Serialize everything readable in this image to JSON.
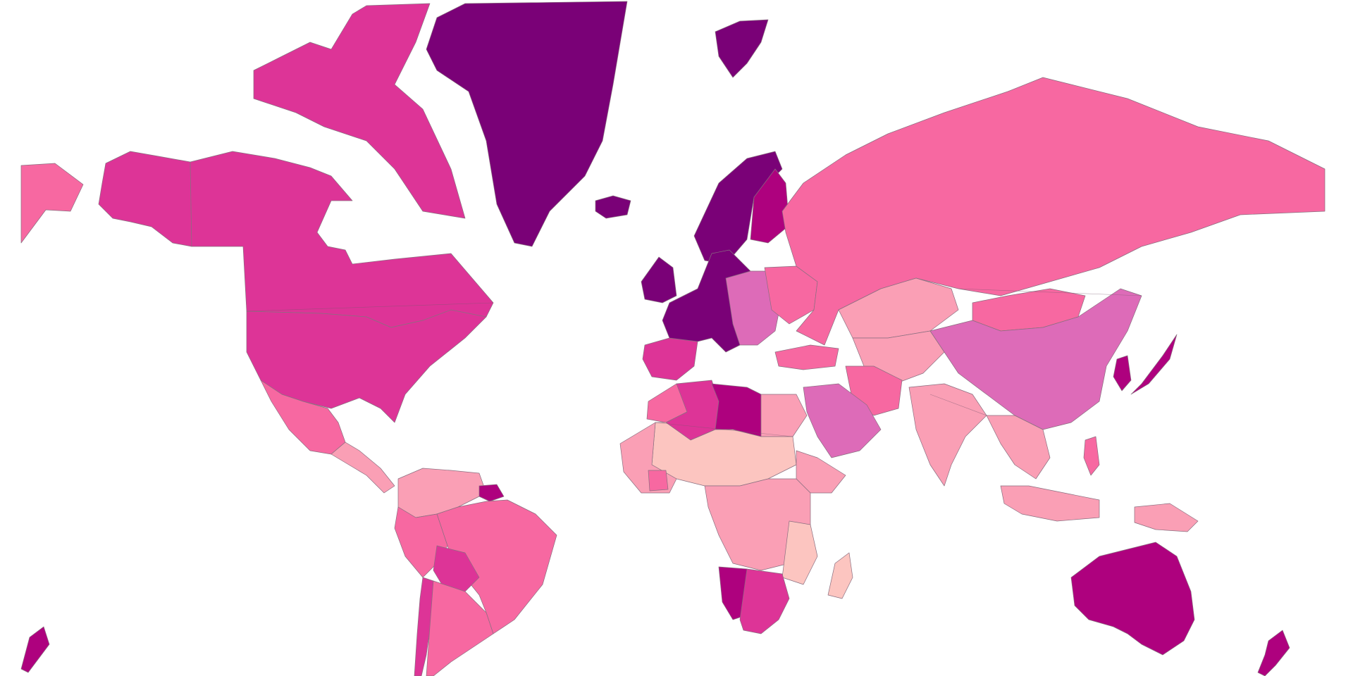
{
  "map": {
    "type": "choropleth",
    "projection": "mercator",
    "background": "#ffffff",
    "palette": [
      "#fcc5c0",
      "#fa9fb5",
      "#f768a1",
      "#dd6bb8",
      "#dd3497",
      "#ae017e",
      "#7a0177"
    ],
    "regions": [
      {
        "name": "greenland",
        "color": "#7a0177"
      },
      {
        "name": "svalbard",
        "color": "#7a0177"
      },
      {
        "name": "canada-arctic-islands",
        "color": "#dd3497"
      },
      {
        "name": "canada",
        "color": "#dd3497"
      },
      {
        "name": "alaska",
        "color": "#dd3497"
      },
      {
        "name": "chukotka",
        "color": "#f768a1"
      },
      {
        "name": "usa",
        "color": "#dd3497"
      },
      {
        "name": "mexico",
        "color": "#f768a1"
      },
      {
        "name": "central-america",
        "color": "#fa9fb5"
      },
      {
        "name": "colombia-venezuela",
        "color": "#fa9fb5"
      },
      {
        "name": "guianas",
        "color": "#ae017e"
      },
      {
        "name": "brazil",
        "color": "#f768a1"
      },
      {
        "name": "peru",
        "color": "#f768a1"
      },
      {
        "name": "bolivia",
        "color": "#dd3497"
      },
      {
        "name": "chile",
        "color": "#dd3497"
      },
      {
        "name": "argentina",
        "color": "#f768a1"
      },
      {
        "name": "iceland",
        "color": "#7a0177"
      },
      {
        "name": "united-kingdom",
        "color": "#7a0177"
      },
      {
        "name": "scandinavia",
        "color": "#7a0177"
      },
      {
        "name": "finland",
        "color": "#ae017e"
      },
      {
        "name": "western-europe",
        "color": "#7a0177"
      },
      {
        "name": "iberia",
        "color": "#dd3497"
      },
      {
        "name": "eastern-europe",
        "color": "#dd6bb8"
      },
      {
        "name": "ukraine",
        "color": "#f768a1"
      },
      {
        "name": "russia",
        "color": "#f768a1"
      },
      {
        "name": "kazakhstan",
        "color": "#fa9fb5"
      },
      {
        "name": "central-asia",
        "color": "#fa9fb5"
      },
      {
        "name": "mongolia",
        "color": "#f768a1"
      },
      {
        "name": "china",
        "color": "#dd6bb8"
      },
      {
        "name": "korea",
        "color": "#ae017e"
      },
      {
        "name": "japan",
        "color": "#ae017e"
      },
      {
        "name": "turkey",
        "color": "#f768a1"
      },
      {
        "name": "iran",
        "color": "#f768a1"
      },
      {
        "name": "saudi-arabia",
        "color": "#dd6bb8"
      },
      {
        "name": "india",
        "color": "#fa9fb5"
      },
      {
        "name": "southeast-asia",
        "color": "#fa9fb5"
      },
      {
        "name": "indonesia",
        "color": "#fa9fb5"
      },
      {
        "name": "philippines",
        "color": "#f768a1"
      },
      {
        "name": "new-guinea",
        "color": "#fa9fb5"
      },
      {
        "name": "australia",
        "color": "#ae017e"
      },
      {
        "name": "new-zealand",
        "color": "#ae017e"
      },
      {
        "name": "morocco",
        "color": "#f768a1"
      },
      {
        "name": "algeria",
        "color": "#dd3497"
      },
      {
        "name": "libya",
        "color": "#ae017e"
      },
      {
        "name": "egypt",
        "color": "#fa9fb5"
      },
      {
        "name": "sahel",
        "color": "#fcc5c0"
      },
      {
        "name": "west-africa",
        "color": "#fa9fb5"
      },
      {
        "name": "ghana",
        "color": "#f768a1"
      },
      {
        "name": "horn-of-africa",
        "color": "#fa9fb5"
      },
      {
        "name": "central-africa",
        "color": "#fa9fb5"
      },
      {
        "name": "east-africa",
        "color": "#fcc5c0"
      },
      {
        "name": "namibia",
        "color": "#ae017e"
      },
      {
        "name": "south-africa",
        "color": "#dd3497"
      },
      {
        "name": "madagascar",
        "color": "#fcc5c0"
      }
    ]
  }
}
